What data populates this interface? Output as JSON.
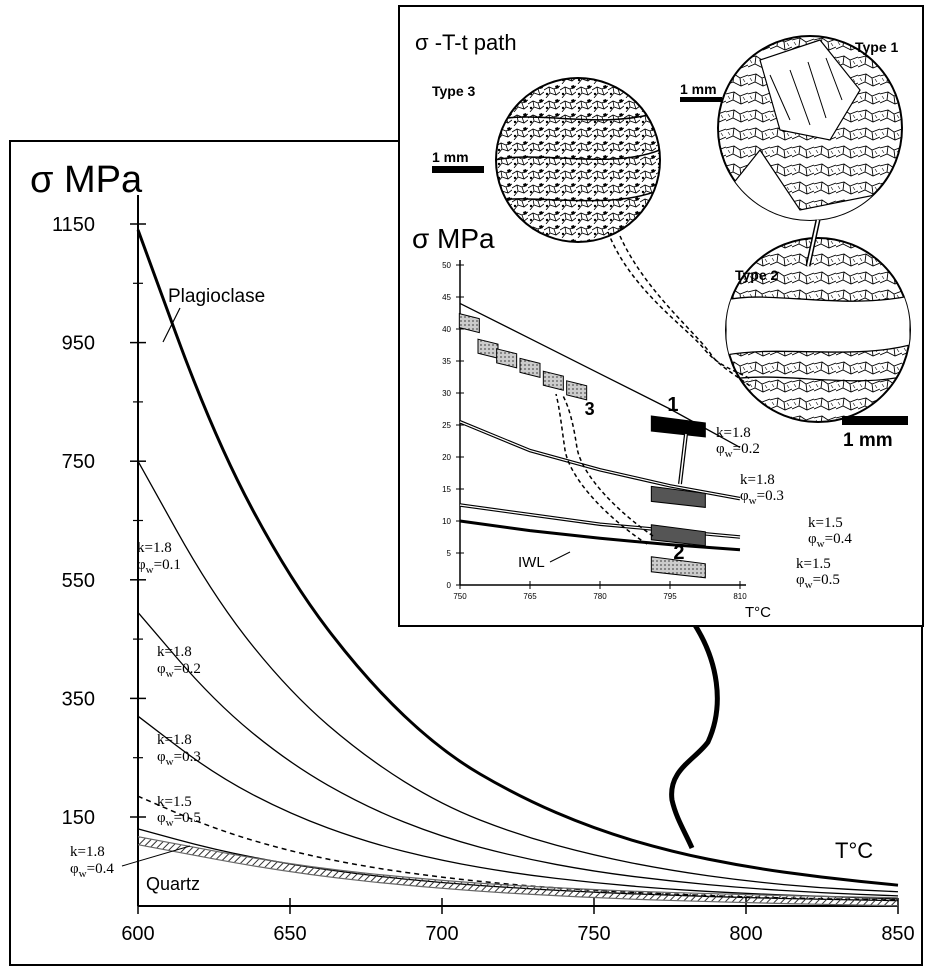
{
  "chart_data": [
    {
      "type": "line",
      "ylabel": "σ MPa",
      "xlabel": "T°C",
      "x_ticks": [
        600,
        650,
        700,
        750,
        800,
        850
      ],
      "y_ticks": [
        150,
        350,
        550,
        750,
        950,
        1150
      ],
      "xlim": [
        600,
        850
      ],
      "ylim": [
        0,
        1200
      ],
      "series": [
        {
          "name": "Plagioclase",
          "style": "thick",
          "x": [
            600,
            625,
            650,
            675,
            700,
            725,
            750,
            775,
            800,
            825,
            850
          ],
          "y": [
            1140,
            790,
            550,
            382,
            260,
            185,
            130,
            92,
            66,
            48,
            35
          ]
        },
        {
          "name": "k=1.8 φw=0.1",
          "style": "thin",
          "x": [
            600,
            625,
            650,
            675,
            700,
            725,
            750,
            775,
            800,
            825,
            850
          ],
          "y": [
            750,
            520,
            360,
            250,
            170,
            120,
            85,
            60,
            42,
            30,
            24
          ]
        },
        {
          "name": "k=1.8 φw=0.2",
          "style": "thin",
          "x": [
            600,
            625,
            650,
            675,
            700,
            725,
            750,
            775,
            800,
            825,
            850
          ],
          "y": [
            495,
            345,
            240,
            167,
            116,
            82,
            58,
            42,
            30,
            22,
            17
          ]
        },
        {
          "name": "k=1.8 φw=0.3",
          "style": "thin",
          "x": [
            600,
            625,
            650,
            675,
            700,
            725,
            750,
            775,
            800,
            825,
            850
          ],
          "y": [
            320,
            222,
            155,
            108,
            76,
            54,
            39,
            28,
            21,
            16,
            12
          ]
        },
        {
          "name": "k=1.5 φw=0.5",
          "style": "dashed",
          "x": [
            600,
            625,
            650,
            675,
            700,
            725,
            750,
            775,
            800,
            825,
            850
          ],
          "y": [
            185,
            130,
            92,
            66,
            48,
            35,
            26,
            20,
            15,
            12,
            10
          ]
        },
        {
          "name": "k=1.8 φw=0.4",
          "style": "thin",
          "x": [
            600,
            625,
            650,
            675,
            700,
            725,
            750,
            775,
            800,
            825,
            850
          ],
          "y": [
            130,
            95,
            70,
            52,
            39,
            30,
            23,
            18,
            14,
            11,
            9
          ]
        },
        {
          "name": "Quartz",
          "style": "band",
          "x": [
            600,
            650,
            700,
            750,
            800,
            850
          ],
          "y": [
            110,
            62,
            35,
            20,
            12,
            7
          ]
        }
      ],
      "labels": {
        "plagioclase": "Plagioclase",
        "quartz": "Quartz",
        "k18_01_k": "k=1.8",
        "k18_01_phi": "φ",
        "k18_01_sub": "w",
        "k18_01_val": "=0.1",
        "k18_02_k": "k=1.8",
        "k18_02_phi": "φ",
        "k18_02_sub": "w",
        "k18_02_val": "=0.2",
        "k18_03_k": "k=1.8",
        "k18_03_phi": "φ",
        "k18_03_sub": "w",
        "k18_03_val": "=0.3",
        "k15_05_k": "k=1.5",
        "k15_05_phi": "φ",
        "k15_05_sub": "w",
        "k15_05_val": "=0.5",
        "k18_04_k": "k=1.8",
        "k18_04_phi": "φ",
        "k18_04_sub": "w",
        "k18_04_val": "=0.4"
      }
    },
    {
      "type": "line",
      "title": "σ -T-t path",
      "ylabel": "σ MPa",
      "xlabel": "T°C",
      "x_ticks": [
        750,
        765,
        780,
        795,
        810
      ],
      "y_ticks": [
        0,
        5,
        10,
        15,
        20,
        25,
        30,
        35,
        40,
        45,
        50
      ],
      "xlim": [
        750,
        810
      ],
      "ylim": [
        0,
        50
      ],
      "series": [
        {
          "name": "k=1.8 φw=0.2",
          "x": [
            750,
            765,
            780,
            795,
            810
          ],
          "y": [
            44,
            38.5,
            33,
            27.5,
            21.5
          ]
        },
        {
          "name": "k=1.8 φw=0.3",
          "x": [
            750,
            765,
            780,
            795,
            810
          ],
          "y": [
            25.5,
            21,
            18,
            15.5,
            13.5
          ]
        },
        {
          "name": "k=1.5 φw=0.4",
          "x": [
            750,
            765,
            780,
            795,
            810
          ],
          "y": [
            12.5,
            11,
            9.5,
            8.5,
            7.5
          ]
        },
        {
          "name": "IWL",
          "x": [
            750,
            765,
            780,
            795,
            810
          ],
          "y": [
            10,
            8.5,
            7.3,
            6.3,
            5.5
          ]
        }
      ],
      "boxes": [
        {
          "label": "3",
          "x": [
            752,
            756,
            760,
            765,
            770,
            775
          ],
          "y": [
            41,
            37,
            35.5,
            34,
            32,
            30.5
          ],
          "fill": "gray"
        },
        {
          "label": "1",
          "x": 797,
          "y": 25,
          "fill": "black"
        },
        {
          "label": "",
          "x": 797,
          "y": 14,
          "fill": "darkgray"
        },
        {
          "label": "2",
          "x": 797,
          "y": 8,
          "fill": "darkgray"
        },
        {
          "label": "",
          "x": 797,
          "y": 3,
          "fill": "gray"
        }
      ],
      "labels": {
        "iwl": "IWL",
        "l1_k": "k=1.8",
        "l1_phi": "φ",
        "l1_sub": "w",
        "l1_val": "=0.2",
        "l2_k": "k=1.8",
        "l2_phi": "φ",
        "l2_sub": "w",
        "l2_val": "=0.3",
        "l3_k": "k=1.5",
        "l3_phi": "φ",
        "l3_sub": "w",
        "l3_val": "=0.4",
        "l4_k": "k=1.5",
        "l4_phi": "φ",
        "l4_sub": "w",
        "l4_val": "=0.5"
      },
      "micrographs": {
        "type1": "Type 1",
        "type2": "Type 2",
        "type3": "Type 3",
        "scale1": "1 mm",
        "scale2": "1 mm",
        "scale3": "1 mm"
      }
    }
  ]
}
